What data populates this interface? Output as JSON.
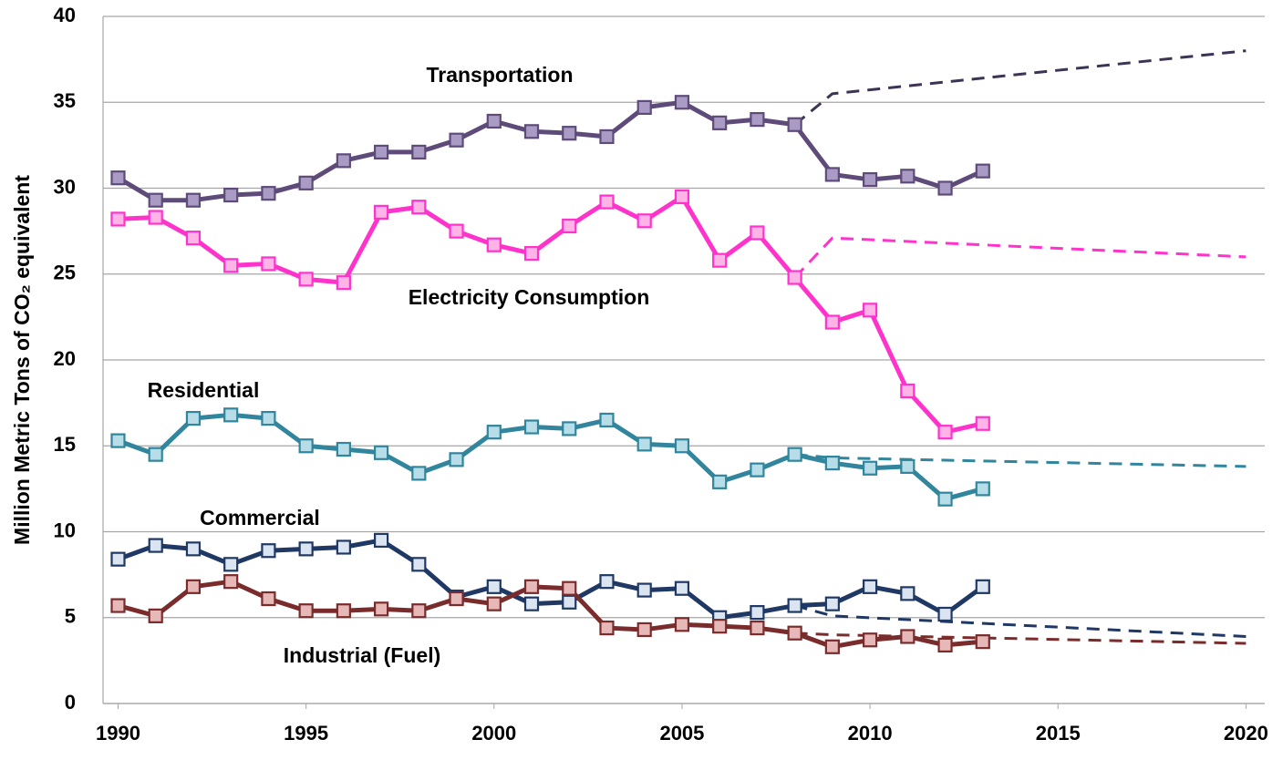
{
  "chart_data": {
    "type": "line",
    "y_label": "Million Metric Tons of CO₂ equivalent",
    "x": [
      1990,
      1991,
      1992,
      1993,
      1994,
      1995,
      1996,
      1997,
      1998,
      1999,
      2000,
      2001,
      2002,
      2003,
      2004,
      2005,
      2006,
      2007,
      2008,
      2009,
      2010,
      2011,
      2012,
      2013
    ],
    "xlim": [
      1989.6,
      2020.5
    ],
    "xticks": [
      1990,
      1995,
      2000,
      2005,
      2010,
      2015,
      2020
    ],
    "ylim": [
      0,
      40
    ],
    "yticks": [
      0,
      5,
      10,
      15,
      20,
      25,
      30,
      35,
      40
    ],
    "grid": true,
    "series": [
      {
        "name": "Transportation",
        "color": "#5e4b7a",
        "marker_fill": "#a99bc4",
        "values": [
          30.6,
          29.3,
          29.3,
          29.6,
          29.7,
          30.3,
          31.6,
          32.1,
          32.1,
          32.8,
          33.9,
          33.3,
          33.2,
          33.0,
          34.7,
          35.0,
          33.8,
          34.0,
          33.7,
          30.8,
          30.5,
          30.7,
          30.0,
          31.0
        ]
      },
      {
        "name": "Electricity Consumption",
        "color": "#ff33cc",
        "marker_fill": "#ffb3e6",
        "values": [
          28.2,
          28.3,
          27.1,
          25.5,
          25.6,
          24.7,
          24.5,
          28.6,
          28.9,
          27.5,
          26.7,
          26.2,
          27.8,
          29.2,
          28.1,
          29.5,
          25.8,
          27.4,
          24.8,
          22.2,
          22.9,
          18.2,
          15.8,
          16.3
        ]
      },
      {
        "name": "Residential",
        "color": "#31859c",
        "marker_fill": "#b7dde8",
        "values": [
          15.3,
          14.5,
          16.6,
          16.8,
          16.6,
          15.0,
          14.8,
          14.6,
          13.4,
          14.2,
          15.8,
          16.1,
          16.0,
          16.5,
          15.1,
          15.0,
          12.9,
          13.6,
          14.5,
          14.0,
          13.7,
          13.8,
          11.9,
          12.5
        ]
      },
      {
        "name": "Commercial",
        "color": "#1f3864",
        "marker_fill": "#dbe5f1",
        "values": [
          8.4,
          9.2,
          9.0,
          8.1,
          8.9,
          9.0,
          9.1,
          9.5,
          8.1,
          6.2,
          6.8,
          5.8,
          5.9,
          7.1,
          6.6,
          6.7,
          5.0,
          5.3,
          5.7,
          5.8,
          6.8,
          6.4,
          5.2,
          6.8
        ]
      },
      {
        "name": "Industrial (Fuel)",
        "color": "#7a2c2c",
        "marker_fill": "#e6b8b7",
        "values": [
          5.7,
          5.1,
          6.8,
          7.1,
          6.1,
          5.4,
          5.4,
          5.5,
          5.4,
          6.1,
          5.8,
          6.8,
          6.7,
          4.4,
          4.3,
          4.6,
          4.5,
          4.4,
          4.1,
          3.3,
          3.7,
          3.9,
          3.4,
          3.6
        ]
      },
      {
        "color": "#3d3355",
        "dashed": true,
        "x": [
          2008,
          2009,
          2020
        ],
        "values": [
          33.7,
          35.5,
          38.0
        ]
      },
      {
        "color": "#ff33cc",
        "dashed": true,
        "x": [
          2008,
          2009,
          2020
        ],
        "values": [
          24.8,
          27.1,
          26.0
        ]
      },
      {
        "color": "#31859c",
        "dashed": true,
        "x": [
          2008,
          2009,
          2020
        ],
        "values": [
          14.5,
          14.3,
          13.8
        ]
      },
      {
        "color": "#1f3864",
        "dashed": true,
        "x": [
          2008,
          2009,
          2020
        ],
        "values": [
          5.7,
          5.1,
          3.9
        ]
      },
      {
        "color": "#7a2c2c",
        "dashed": true,
        "x": [
          2008,
          2009,
          2020
        ],
        "values": [
          4.1,
          4.0,
          3.5
        ]
      }
    ]
  }
}
